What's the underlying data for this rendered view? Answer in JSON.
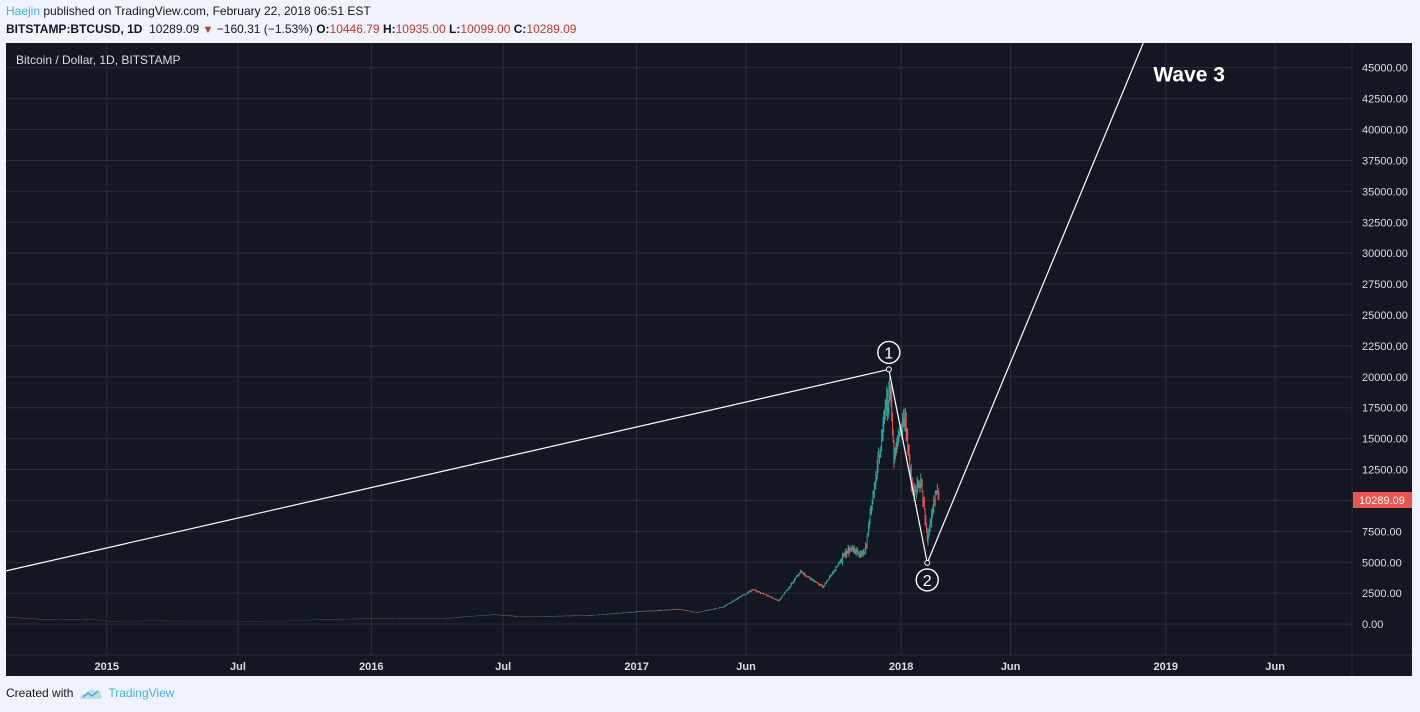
{
  "header": {
    "author": "Haejin",
    "published_text": "published on TradingView.com, February 22, 2018 06:51 EST",
    "symbol": "BITSTAMP:BTCUSD, 1D",
    "last": "10289.09",
    "change": "−160.31 (−1.53%)",
    "open_label": "O:",
    "open": "10446.79",
    "high_label": "H:",
    "high": "10935.00",
    "low_label": "L:",
    "low": "10099.00",
    "close_label": "C:",
    "close": "10289.09"
  },
  "colors": {
    "background": "#131722",
    "grid": "#2a2e39",
    "up": "#26a69a",
    "down": "#ef5350",
    "last_price": "#ef5350",
    "annotation": "#ffffff",
    "axis_text": "#dddddd",
    "brand": "#3bb3e4"
  },
  "chart_data": {
    "type": "candlestick",
    "title": "Bitcoin / Dollar, 1D, BITSTAMP",
    "x_range": [
      "2014-08-15",
      "2019-09-15"
    ],
    "ylim": [
      -2500,
      47000
    ],
    "y_ticks": [
      "0.00",
      "2500.00",
      "5000.00",
      "7500.00",
      "10000.00",
      "12500.00",
      "15000.00",
      "17500.00",
      "20000.00",
      "22500.00",
      "25000.00",
      "27500.00",
      "30000.00",
      "32500.00",
      "35000.00",
      "37500.00",
      "40000.00",
      "42500.00",
      "45000.00"
    ],
    "x_ticks": [
      {
        "label": "2015",
        "date": "2015-01-01"
      },
      {
        "label": "Jul",
        "date": "2015-07-01"
      },
      {
        "label": "2016",
        "date": "2016-01-01"
      },
      {
        "label": "Jul",
        "date": "2016-07-01"
      },
      {
        "label": "2017",
        "date": "2017-01-01"
      },
      {
        "label": "Jun",
        "date": "2017-06-01"
      },
      {
        "label": "2018",
        "date": "2018-01-01"
      },
      {
        "label": "Jun",
        "date": "2018-06-01"
      },
      {
        "label": "2019",
        "date": "2019-01-01"
      },
      {
        "label": "Jun",
        "date": "2019-06-01"
      }
    ],
    "last_price_label": "10289.09",
    "last_price": 10289.09,
    "price_path": [
      [
        "2014-08-15",
        580
      ],
      [
        "2014-10-01",
        390
      ],
      [
        "2014-12-01",
        380
      ],
      [
        "2015-01-15",
        210
      ],
      [
        "2015-03-01",
        260
      ],
      [
        "2015-06-01",
        230
      ],
      [
        "2015-09-01",
        235
      ],
      [
        "2015-11-05",
        390
      ],
      [
        "2016-01-01",
        430
      ],
      [
        "2016-04-01",
        420
      ],
      [
        "2016-06-17",
        760
      ],
      [
        "2016-08-01",
        580
      ],
      [
        "2016-11-01",
        710
      ],
      [
        "2017-01-03",
        1000
      ],
      [
        "2017-03-01",
        1200
      ],
      [
        "2017-03-25",
        930
      ],
      [
        "2017-05-01",
        1400
      ],
      [
        "2017-06-10",
        2800
      ],
      [
        "2017-07-16",
        1900
      ],
      [
        "2017-08-15",
        4200
      ],
      [
        "2017-09-15",
        3000
      ],
      [
        "2017-10-20",
        6000
      ],
      [
        "2017-11-12",
        5800
      ],
      [
        "2017-12-07",
        16000
      ],
      [
        "2017-12-17",
        19300
      ],
      [
        "2017-12-22",
        13500
      ],
      [
        "2018-01-06",
        17000
      ],
      [
        "2018-01-17",
        10500
      ],
      [
        "2018-01-28",
        11700
      ],
      [
        "2018-02-06",
        6900
      ],
      [
        "2018-02-20",
        11200
      ],
      [
        "2018-02-22",
        10289.09
      ]
    ],
    "annotations": {
      "wave_label": "Wave 3",
      "wave_points": [
        {
          "label": "1",
          "date": "2017-12-15",
          "price": 20600
        },
        {
          "label": "2",
          "date": "2018-02-06",
          "price": 4950
        }
      ],
      "lines": [
        {
          "from": [
            "2014-08-15",
            4300
          ],
          "to": [
            "2017-12-15",
            20600
          ]
        },
        {
          "from": [
            "2017-12-15",
            20600
          ],
          "to": [
            "2018-02-06",
            4950
          ]
        },
        {
          "from": [
            "2018-02-06",
            4950
          ],
          "to": [
            "2018-12-01",
            47000
          ]
        }
      ],
      "wave3_label_anchor": [
        "2018-12-15",
        43900
      ]
    }
  },
  "footer": {
    "created_with": "Created with",
    "brand": "TradingView"
  }
}
